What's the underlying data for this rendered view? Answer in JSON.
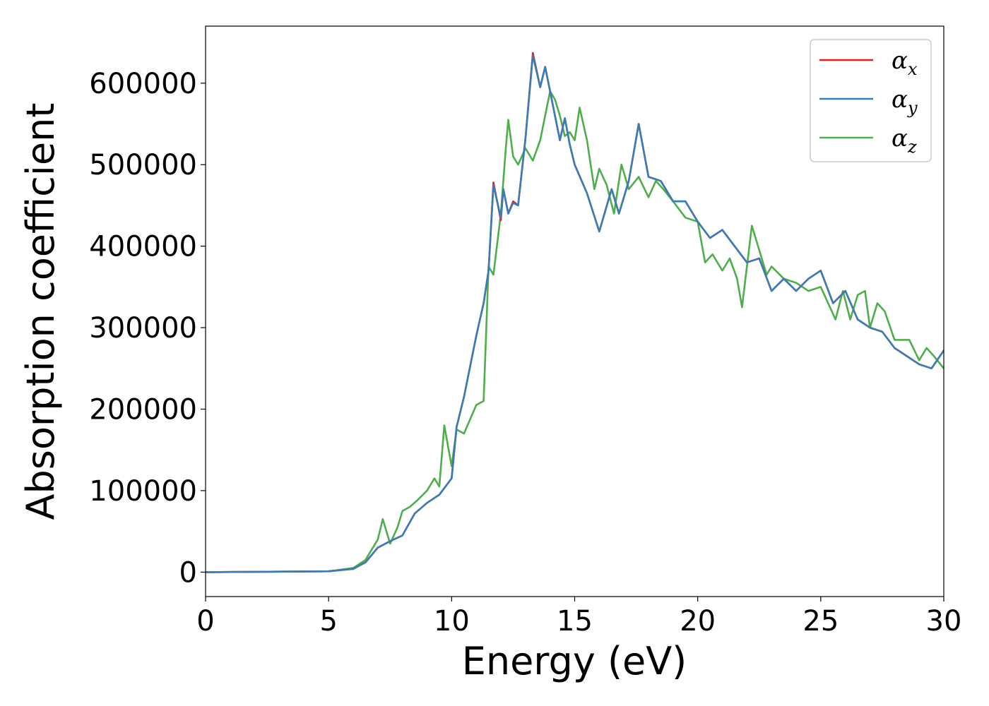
{
  "chart_data": {
    "type": "line",
    "title": "",
    "xlabel": "Energy (eV)",
    "ylabel": "Absorption coefficient",
    "xlim": [
      0,
      30
    ],
    "ylim": [
      -30000,
      670000
    ],
    "xticks": [
      0,
      5,
      10,
      15,
      20,
      25,
      30
    ],
    "xtick_labels": [
      "0",
      "5",
      "10",
      "15",
      "20",
      "25",
      "30"
    ],
    "yticks": [
      0,
      100000,
      200000,
      300000,
      400000,
      500000,
      600000
    ],
    "ytick_labels": [
      "0",
      "100000",
      "200000",
      "300000",
      "400000",
      "500000",
      "600000"
    ],
    "grid": false,
    "legend_position": "top-right",
    "series": [
      {
        "name": "αx",
        "symbol": "α",
        "subscript": "x",
        "color": "#e41a1c",
        "x": [
          0,
          5,
          6,
          6.5,
          7,
          7.5,
          8,
          8.5,
          9,
          9.5,
          10,
          10.2,
          10.5,
          11,
          11.3,
          11.5,
          11.7,
          12,
          12.1,
          12.3,
          12.5,
          12.7,
          13,
          13.3,
          13.6,
          13.8,
          14,
          14.2,
          14.4,
          14.6,
          14.8,
          15,
          15.5,
          16,
          16.5,
          16.8,
          17.2,
          17.6,
          18,
          18.5,
          19,
          19.5,
          20,
          20.5,
          21,
          21.5,
          22,
          22.5,
          23,
          23.5,
          24,
          24.5,
          25,
          25.5,
          26,
          26.5,
          27,
          27.5,
          28,
          28.5,
          29,
          29.5,
          30
        ],
        "y": [
          0,
          1000,
          4000,
          12000,
          30000,
          38000,
          45000,
          72000,
          85000,
          95000,
          115000,
          178000,
          215000,
          290000,
          330000,
          370000,
          478000,
          432000,
          470000,
          440000,
          455000,
          450000,
          532000,
          637000,
          595000,
          620000,
          590000,
          560000,
          530000,
          557000,
          525000,
          500000,
          465000,
          418000,
          470000,
          440000,
          480000,
          550000,
          485000,
          480000,
          455000,
          455000,
          430000,
          410000,
          420000,
          400000,
          380000,
          385000,
          345000,
          360000,
          345000,
          360000,
          370000,
          330000,
          345000,
          310000,
          300000,
          295000,
          275000,
          265000,
          255000,
          250000,
          272000
        ]
      },
      {
        "name": "αy",
        "symbol": "α",
        "subscript": "y",
        "color": "#377eb8",
        "x": [
          0,
          5,
          6,
          6.5,
          7,
          7.5,
          8,
          8.5,
          9,
          9.5,
          10,
          10.2,
          10.5,
          11,
          11.3,
          11.5,
          11.7,
          12,
          12.1,
          12.3,
          12.5,
          12.7,
          13,
          13.3,
          13.6,
          13.8,
          14,
          14.2,
          14.4,
          14.6,
          14.8,
          15,
          15.5,
          16,
          16.5,
          16.8,
          17.2,
          17.6,
          18,
          18.5,
          19,
          19.5,
          20,
          20.5,
          21,
          21.5,
          22,
          22.5,
          23,
          23.5,
          24,
          24.5,
          25,
          25.5,
          26,
          26.5,
          27,
          27.5,
          28,
          28.5,
          29,
          29.5,
          30
        ],
        "y": [
          0,
          1000,
          4000,
          12000,
          30000,
          38000,
          45000,
          72000,
          85000,
          95000,
          115000,
          178000,
          215000,
          290000,
          330000,
          370000,
          475000,
          435000,
          470000,
          440000,
          453000,
          450000,
          532000,
          634000,
          595000,
          620000,
          590000,
          560000,
          530000,
          557000,
          525000,
          500000,
          465000,
          418000,
          470000,
          440000,
          480000,
          550000,
          485000,
          480000,
          455000,
          455000,
          430000,
          410000,
          420000,
          400000,
          380000,
          385000,
          345000,
          360000,
          345000,
          360000,
          370000,
          330000,
          345000,
          310000,
          300000,
          295000,
          275000,
          265000,
          255000,
          250000,
          272000
        ]
      },
      {
        "name": "αz",
        "symbol": "α",
        "subscript": "z",
        "color": "#4daf4a",
        "x": [
          0,
          5,
          6,
          6.5,
          7,
          7.2,
          7.5,
          7.8,
          8,
          8.3,
          8.6,
          9,
          9.3,
          9.5,
          9.7,
          10,
          10.2,
          10.5,
          11,
          11.3,
          11.5,
          11.7,
          12,
          12.2,
          12.3,
          12.5,
          12.7,
          13,
          13.3,
          13.6,
          14,
          14.2,
          14.4,
          14.6,
          14.8,
          15,
          15.2,
          15.5,
          15.8,
          16,
          16.3,
          16.6,
          16.9,
          17.2,
          17.6,
          18,
          18.3,
          18.6,
          19,
          19.5,
          20,
          20.3,
          20.6,
          21,
          21.3,
          21.6,
          21.8,
          22,
          22.2,
          22.5,
          22.8,
          23,
          23.5,
          24,
          24.5,
          25,
          25.3,
          25.6,
          25.9,
          26.2,
          26.5,
          26.8,
          27,
          27.3,
          27.6,
          28,
          28.3,
          28.6,
          29,
          29.3,
          29.6,
          30
        ],
        "y": [
          0,
          1000,
          5000,
          15000,
          40000,
          65000,
          35000,
          55000,
          75000,
          80000,
          88000,
          100000,
          115000,
          105000,
          180000,
          130000,
          175000,
          170000,
          205000,
          210000,
          375000,
          365000,
          440000,
          520000,
          555000,
          510000,
          500000,
          520000,
          505000,
          530000,
          590000,
          580000,
          560000,
          535000,
          540000,
          530000,
          570000,
          530000,
          470000,
          495000,
          475000,
          440000,
          500000,
          470000,
          485000,
          460000,
          480000,
          470000,
          455000,
          435000,
          430000,
          380000,
          390000,
          370000,
          385000,
          360000,
          325000,
          375000,
          425000,
          395000,
          365000,
          375000,
          360000,
          355000,
          345000,
          350000,
          330000,
          310000,
          345000,
          310000,
          340000,
          345000,
          300000,
          330000,
          320000,
          285000,
          285000,
          285000,
          260000,
          275000,
          265000,
          250000
        ]
      }
    ]
  }
}
